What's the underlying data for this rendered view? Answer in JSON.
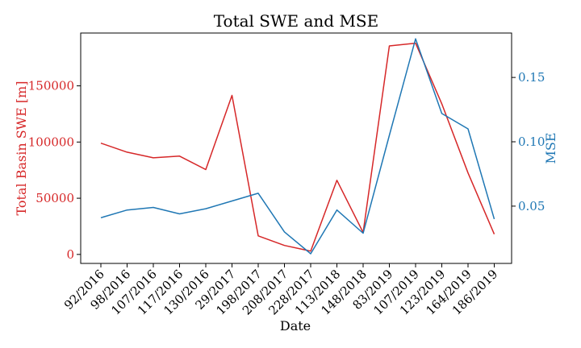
{
  "chart_data": {
    "type": "line",
    "title": "Total SWE and MSE",
    "xlabel": "Date",
    "categories": [
      "92/2016",
      "98/2016",
      "107/2016",
      "117/2016",
      "130/2016",
      "29/2017",
      "198/2017",
      "208/2017",
      "228/2017",
      "113/2018",
      "148/2018",
      "83/2019",
      "107/2019",
      "123/2019",
      "164/2019",
      "186/2019"
    ],
    "left_axis": {
      "label": "Total Basin SWE [m]",
      "color": "#d62728",
      "ylim": [
        -8000,
        197000
      ],
      "ticks": [
        0,
        50000,
        100000,
        150000
      ],
      "tick_labels": [
        "0",
        "50000",
        "100000",
        "150000"
      ]
    },
    "right_axis": {
      "label": "MSE",
      "color": "#1f77b4",
      "ylim": [
        0.0055,
        0.1845
      ],
      "ticks": [
        0.05,
        0.1,
        0.15
      ],
      "tick_labels": [
        "0.05",
        "0.10",
        "0.15"
      ]
    },
    "series": [
      {
        "axis": "left",
        "color": "#d62728",
        "values": [
          99000,
          91000,
          86000,
          87500,
          75500,
          141500,
          16500,
          8000,
          3000,
          66000,
          19500,
          185500,
          188000,
          134000,
          72500,
          18000
        ]
      },
      {
        "axis": "right",
        "color": "#1f77b4",
        "values": [
          0.041,
          0.047,
          0.049,
          0.044,
          0.048,
          0.054,
          0.06,
          0.03,
          0.013,
          0.047,
          0.029,
          0.105,
          0.18,
          0.122,
          0.11,
          0.04
        ]
      }
    ]
  }
}
